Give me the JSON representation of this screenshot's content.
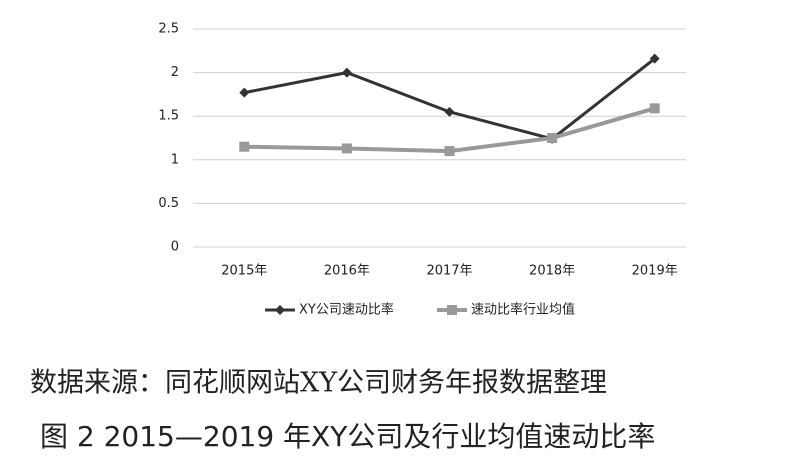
{
  "chart_data": {
    "type": "line",
    "categories": [
      "2015年",
      "2016年",
      "2017年",
      "2018年",
      "2019年"
    ],
    "series": [
      {
        "name": "XY公司速动比率",
        "color": "#333333",
        "marker": "diamond",
        "values": [
          1.77,
          2.0,
          1.55,
          1.24,
          2.16
        ]
      },
      {
        "name": "速动比率行业均值",
        "color": "#999999",
        "marker": "square",
        "values": [
          1.15,
          1.13,
          1.1,
          1.25,
          1.59
        ]
      }
    ],
    "ylim": [
      0,
      2.5
    ],
    "yticks": [
      0,
      0.5,
      1,
      1.5,
      2,
      2.5
    ],
    "grid": true,
    "legend": "bottom",
    "source": "数据来源：同花顺网站XY公司财务年报数据整理",
    "caption": "图 2  2015—2019 年XY公司及行业均值速动比率"
  }
}
